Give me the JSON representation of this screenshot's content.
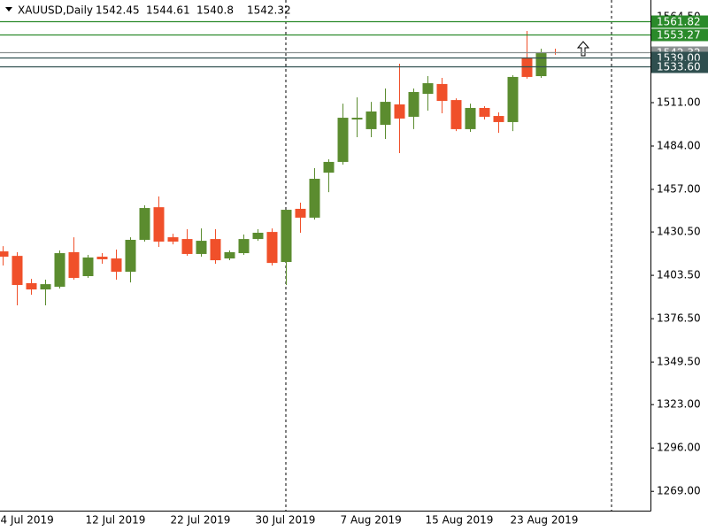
{
  "chart_data": {
    "type": "candlestick",
    "title": "XAUUSD,Daily",
    "categories": [
      "4 Jul 2019",
      null,
      null,
      null,
      null,
      null,
      "12 Jul 2019",
      null,
      null,
      null,
      null,
      null,
      "22 Jul 2019",
      null,
      null,
      null,
      null,
      null,
      "30 Jul 2019",
      null,
      null,
      null,
      null,
      null,
      "7 Aug 2019",
      null,
      null,
      null,
      null,
      null,
      "15 Aug 2019",
      null,
      null,
      null,
      null,
      null,
      "23 Aug 2019",
      null,
      null,
      null
    ],
    "open": [
      1418.4,
      1415.6,
      1398.6,
      1394.7,
      1396.4,
      1417.9,
      1403.0,
      1415.1,
      1414.0,
      1405.7,
      1425.6,
      1445.9,
      1427.2,
      1426.1,
      1416.8,
      1426.1,
      1414.0,
      1417.3,
      1426.1,
      1430.5,
      1411.8,
      1444.9,
      1439.4,
      1467.4,
      1474.1,
      1500.5,
      1494.5,
      1497.2,
      1509.9,
      1502.2,
      1516.5,
      1522.6,
      1512.6,
      1494.5,
      1507.7,
      1502.7,
      1498.9,
      1539.1,
      1527.5,
      1542.45
    ],
    "high": [
      1421.7,
      1417.9,
      1401.3,
      1400.8,
      1419.0,
      1427.2,
      1416.2,
      1417.3,
      1419.5,
      1427.2,
      1447.1,
      1452.6,
      1429.4,
      1432.2,
      1432.7,
      1432.2,
      1419.0,
      1428.9,
      1432.2,
      1432.7,
      1444.3,
      1448.7,
      1470.2,
      1475.7,
      1510.4,
      1514.3,
      1511.5,
      1519.8,
      1535.2,
      1519.8,
      1527.5,
      1526.4,
      1513.7,
      1510.4,
      1508.8,
      1504.9,
      1528.1,
      1555.6,
      1544.6,
      1544.61
    ],
    "low": [
      1409.6,
      1384.8,
      1391.4,
      1384.8,
      1395.3,
      1400.8,
      1401.9,
      1410.7,
      1400.8,
      1399.1,
      1424.5,
      1421.2,
      1422.8,
      1415.7,
      1415.1,
      1410.7,
      1412.9,
      1416.2,
      1425.0,
      1409.6,
      1397.5,
      1430.0,
      1438.2,
      1455.3,
      1472.4,
      1489.5,
      1489.5,
      1488.4,
      1479.6,
      1494.5,
      1506.0,
      1504.4,
      1493.3,
      1492.8,
      1500.5,
      1492.2,
      1493.3,
      1525.9,
      1526.4,
      1540.8
    ],
    "close": [
      1415.1,
      1397.5,
      1394.7,
      1398.0,
      1417.3,
      1401.9,
      1414.6,
      1413.5,
      1405.7,
      1425.6,
      1445.4,
      1424.5,
      1424.5,
      1416.8,
      1425.0,
      1412.9,
      1417.9,
      1426.1,
      1430.0,
      1411.2,
      1444.3,
      1439.4,
      1463.6,
      1474.1,
      1501.6,
      1501.6,
      1505.5,
      1511.5,
      1501.1,
      1517.6,
      1523.1,
      1512.1,
      1494.5,
      1507.7,
      1502.2,
      1498.9,
      1527.0,
      1527.0,
      1542.4,
      1542.32
    ],
    "up_color": "#5b8c2f",
    "down_color": "#f0502a",
    "ylim": [
      1257.0,
      1574.9
    ],
    "yticks": [
      {
        "value": 1269,
        "label": "1269.00"
      },
      {
        "value": 1296,
        "label": "1296.00"
      },
      {
        "value": 1323,
        "label": "1323.00"
      },
      {
        "value": 1349.5,
        "label": "1349.50"
      },
      {
        "value": 1376.5,
        "label": "1376.50"
      },
      {
        "value": 1403.5,
        "label": "1403.50"
      },
      {
        "value": 1430.5,
        "label": "1430.50"
      },
      {
        "value": 1457,
        "label": "1457.00"
      },
      {
        "value": 1484,
        "label": "1484.00"
      },
      {
        "value": 1511,
        "label": "1511.00"
      },
      {
        "value": 1564.5,
        "label": "1564.50"
      }
    ],
    "levels": [
      {
        "value": 1542.32,
        "label": "1542.32",
        "color": "#8a9090"
      },
      {
        "value": 1561.82,
        "label": "1561.82",
        "color": "#2a8a2a"
      },
      {
        "value": 1553.27,
        "label": "1553.27",
        "color": "#2a8a2a"
      },
      {
        "value": 1539.0,
        "label": "1539.00",
        "color": "#2f4f4f"
      },
      {
        "value": 1533.6,
        "label": "1533.60",
        "color": "#2f4f4f"
      }
    ]
  }
}
